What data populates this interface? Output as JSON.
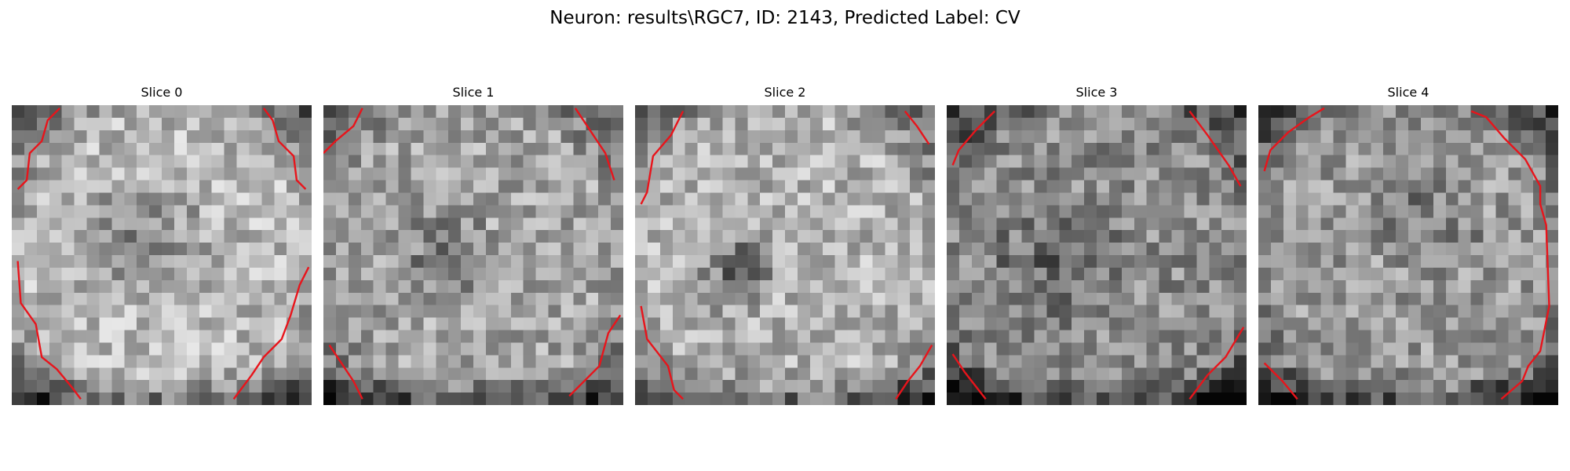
{
  "figure": {
    "title": "Neuron: results\\RGC7, ID: 2143, Predicted Label: CV",
    "outline_color": "#e8141b",
    "colormap": "gray"
  },
  "slices": [
    {
      "label": "Slice 0",
      "outline_segments": [
        "upper-left",
        "upper-right",
        "lower-left",
        "lower-right"
      ]
    },
    {
      "label": "Slice 1",
      "outline_segments": [
        "upper-left",
        "upper-right",
        "lower-left",
        "lower-right"
      ]
    },
    {
      "label": "Slice 2",
      "outline_segments": [
        "upper-left",
        "upper-right",
        "lower-left",
        "lower-right"
      ]
    },
    {
      "label": "Slice 3",
      "outline_segments": [
        "upper-left",
        "upper-right",
        "lower-left",
        "lower-right"
      ]
    },
    {
      "label": "Slice 4",
      "outline_segments": [
        "upper-left",
        "right-side",
        "lower-left"
      ]
    }
  ]
}
